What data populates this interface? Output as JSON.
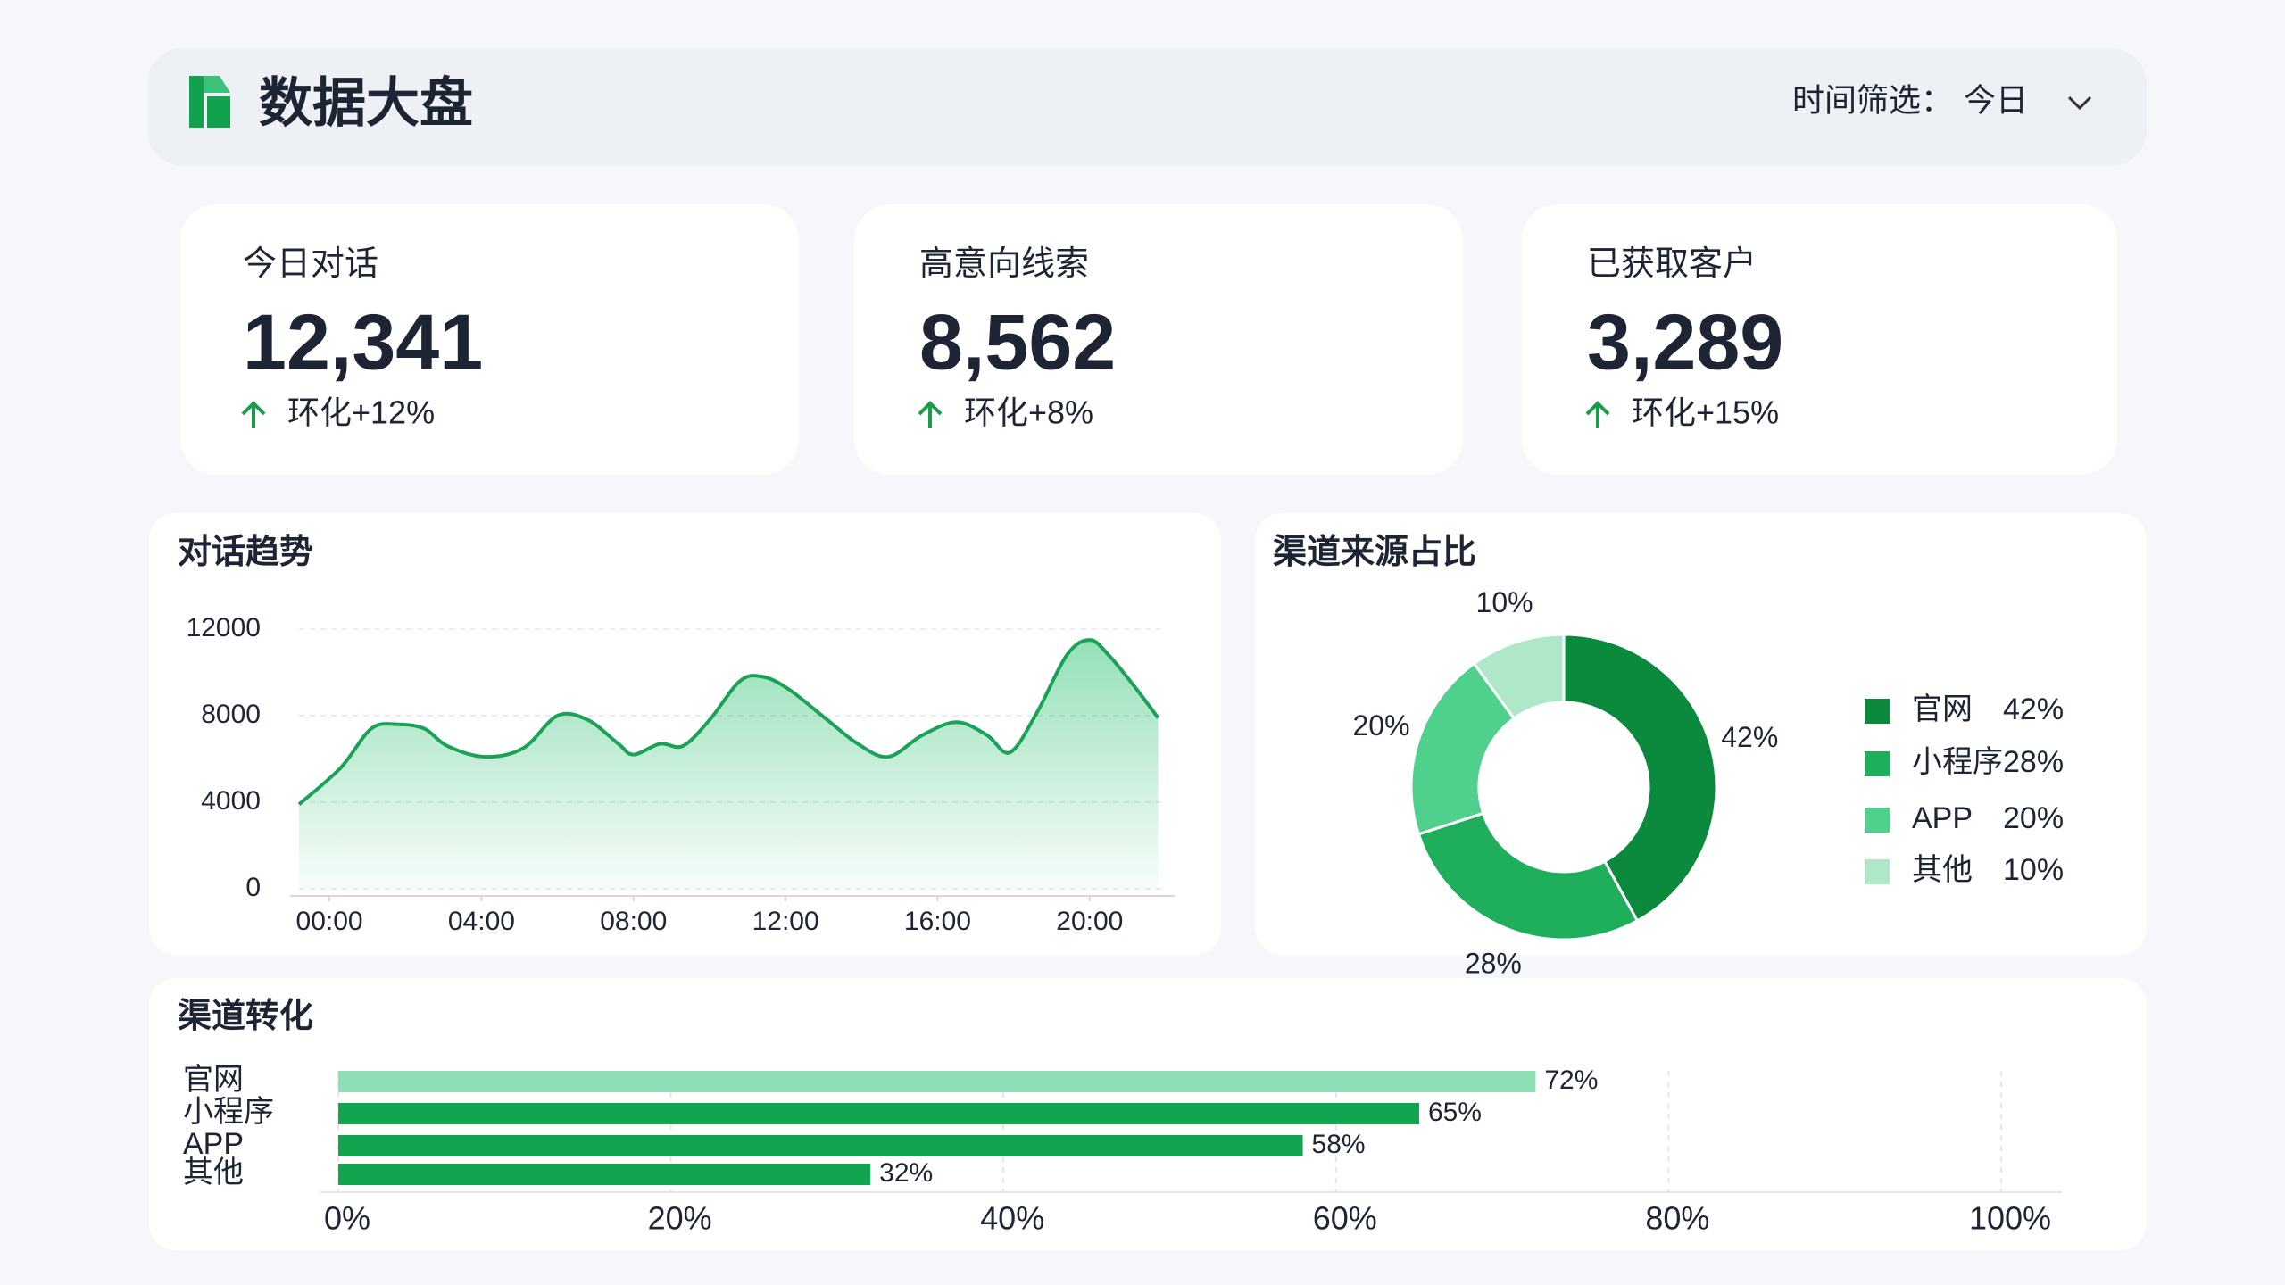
{
  "header": {
    "title": "数据大盘",
    "filter_label": "时间筛选：",
    "filter_value": "今日"
  },
  "kpis": [
    {
      "label": "今日对话",
      "value": "12,341",
      "change": "环化+12%"
    },
    {
      "label": "高意向线索",
      "value": "8,562",
      "change": "环化+8%"
    },
    {
      "label": "已获取客户",
      "value": "3,289",
      "change": "环化+15%"
    }
  ],
  "chart_data": [
    {
      "type": "line",
      "title": "对话趋势",
      "color": "#1aa357",
      "x": [
        -0.8,
        0.3,
        1.1,
        1.8,
        2.5,
        3.1,
        4.1,
        5.1,
        6.0,
        6.8,
        7.6,
        8.0,
        8.7,
        9.3,
        10.0,
        10.8,
        11.4,
        12.1,
        13.1,
        13.9,
        14.7,
        15.6,
        16.5,
        17.3,
        17.9,
        18.6,
        19.4,
        20.0,
        20.5,
        21.2,
        21.8
      ],
      "values": [
        3900,
        5600,
        7400,
        7600,
        7400,
        6600,
        6100,
        6500,
        8000,
        7800,
        6700,
        6200,
        6700,
        6600,
        7800,
        9600,
        9800,
        9200,
        7800,
        6700,
        6100,
        7100,
        7700,
        7100,
        6300,
        8100,
        10800,
        11500,
        10800,
        9300,
        7900
      ],
      "xlim": [
        -0.8,
        22
      ],
      "xticks": [
        {
          "value": 0,
          "label": "00:00"
        },
        {
          "value": 4,
          "label": "04:00"
        },
        {
          "value": 8,
          "label": "08:00"
        },
        {
          "value": 12,
          "label": "12:00"
        },
        {
          "value": 16,
          "label": "16:00"
        },
        {
          "value": 20,
          "label": "20:00"
        }
      ],
      "ylim": [
        0,
        12000
      ],
      "yticks": [
        0,
        4000,
        8000,
        12000
      ],
      "grid": true
    },
    {
      "type": "pie",
      "title": "渠道来源占比",
      "categories": [
        "官网",
        "小程序",
        "APP",
        "其他"
      ],
      "values": [
        42,
        28,
        20,
        10
      ],
      "value_labels": [
        "42%",
        "28%",
        "20%",
        "10%"
      ],
      "colors": [
        "#0b8a3e",
        "#1fae5b",
        "#4fd08c",
        "#aee8c9"
      ],
      "legend": "right"
    },
    {
      "type": "hbar",
      "title": "渠道转化",
      "categories": [
        "官网",
        "小程序",
        "APP",
        "其他"
      ],
      "values": [
        72,
        65,
        58,
        32
      ],
      "value_labels": [
        "72%",
        "65%",
        "58%",
        "32%"
      ],
      "colors": [
        "#8fdfb6",
        "#13a450",
        "#13a450",
        "#13a450"
      ],
      "xlim": [
        0,
        100
      ],
      "xticks": [
        {
          "value": 0,
          "label": "0%"
        },
        {
          "value": 20,
          "label": "20%"
        },
        {
          "value": 40,
          "label": "40%"
        },
        {
          "value": 60,
          "label": "60%"
        },
        {
          "value": 80,
          "label": "80%"
        },
        {
          "value": 100,
          "label": "100%"
        }
      ],
      "grid": true
    }
  ]
}
